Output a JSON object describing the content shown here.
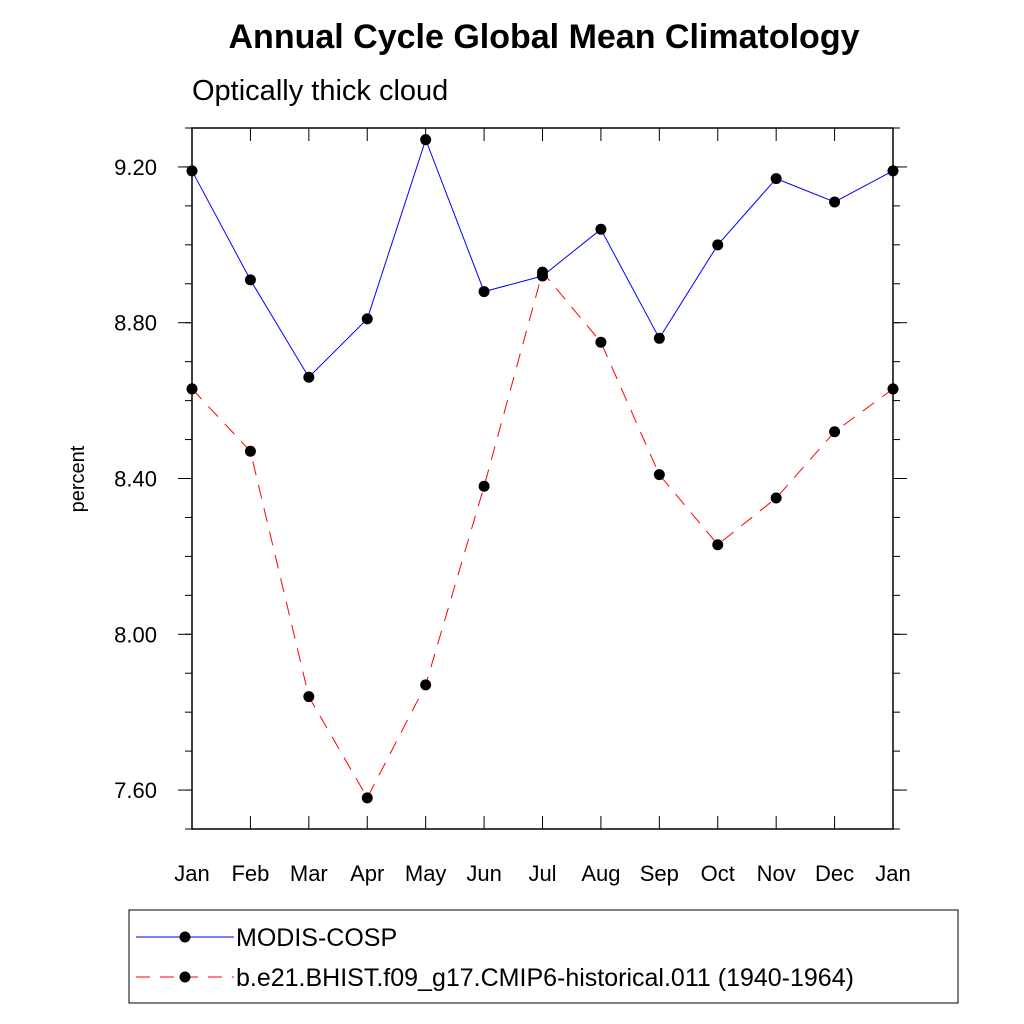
{
  "chart_data": {
    "type": "line",
    "title": "Annual Cycle Global Mean Climatology",
    "subtitle": "Optically thick cloud",
    "xlabel": "",
    "ylabel": "percent",
    "categories": [
      "Jan",
      "Feb",
      "Mar",
      "Apr",
      "May",
      "Jun",
      "Jul",
      "Aug",
      "Sep",
      "Oct",
      "Nov",
      "Dec",
      "Jan"
    ],
    "ylim": [
      7.5,
      9.3
    ],
    "yticks": [
      7.6,
      8.0,
      8.4,
      8.8,
      9.2
    ],
    "ytick_labels": [
      "7.60",
      "8.00",
      "8.40",
      "8.80",
      "9.20"
    ],
    "y_minor_step": 0.1,
    "grid": false,
    "legend_position": "bottom",
    "series": [
      {
        "name": "MODIS-COSP",
        "color": "#0000ff",
        "dash": "solid",
        "marker": "filled-circle",
        "values": [
          9.19,
          8.91,
          8.66,
          8.81,
          9.27,
          8.88,
          8.92,
          9.04,
          8.76,
          9.0,
          9.17,
          9.11,
          9.19
        ]
      },
      {
        "name": "b.e21.BHIST.f09_g17.CMIP6-historical.011 (1940-1964)",
        "color": "#ff0000",
        "dash": "dashed",
        "marker": "filled-circle",
        "values": [
          8.63,
          8.47,
          7.84,
          7.58,
          7.87,
          8.38,
          8.93,
          8.75,
          8.41,
          8.23,
          8.35,
          8.52,
          8.63
        ]
      }
    ]
  }
}
